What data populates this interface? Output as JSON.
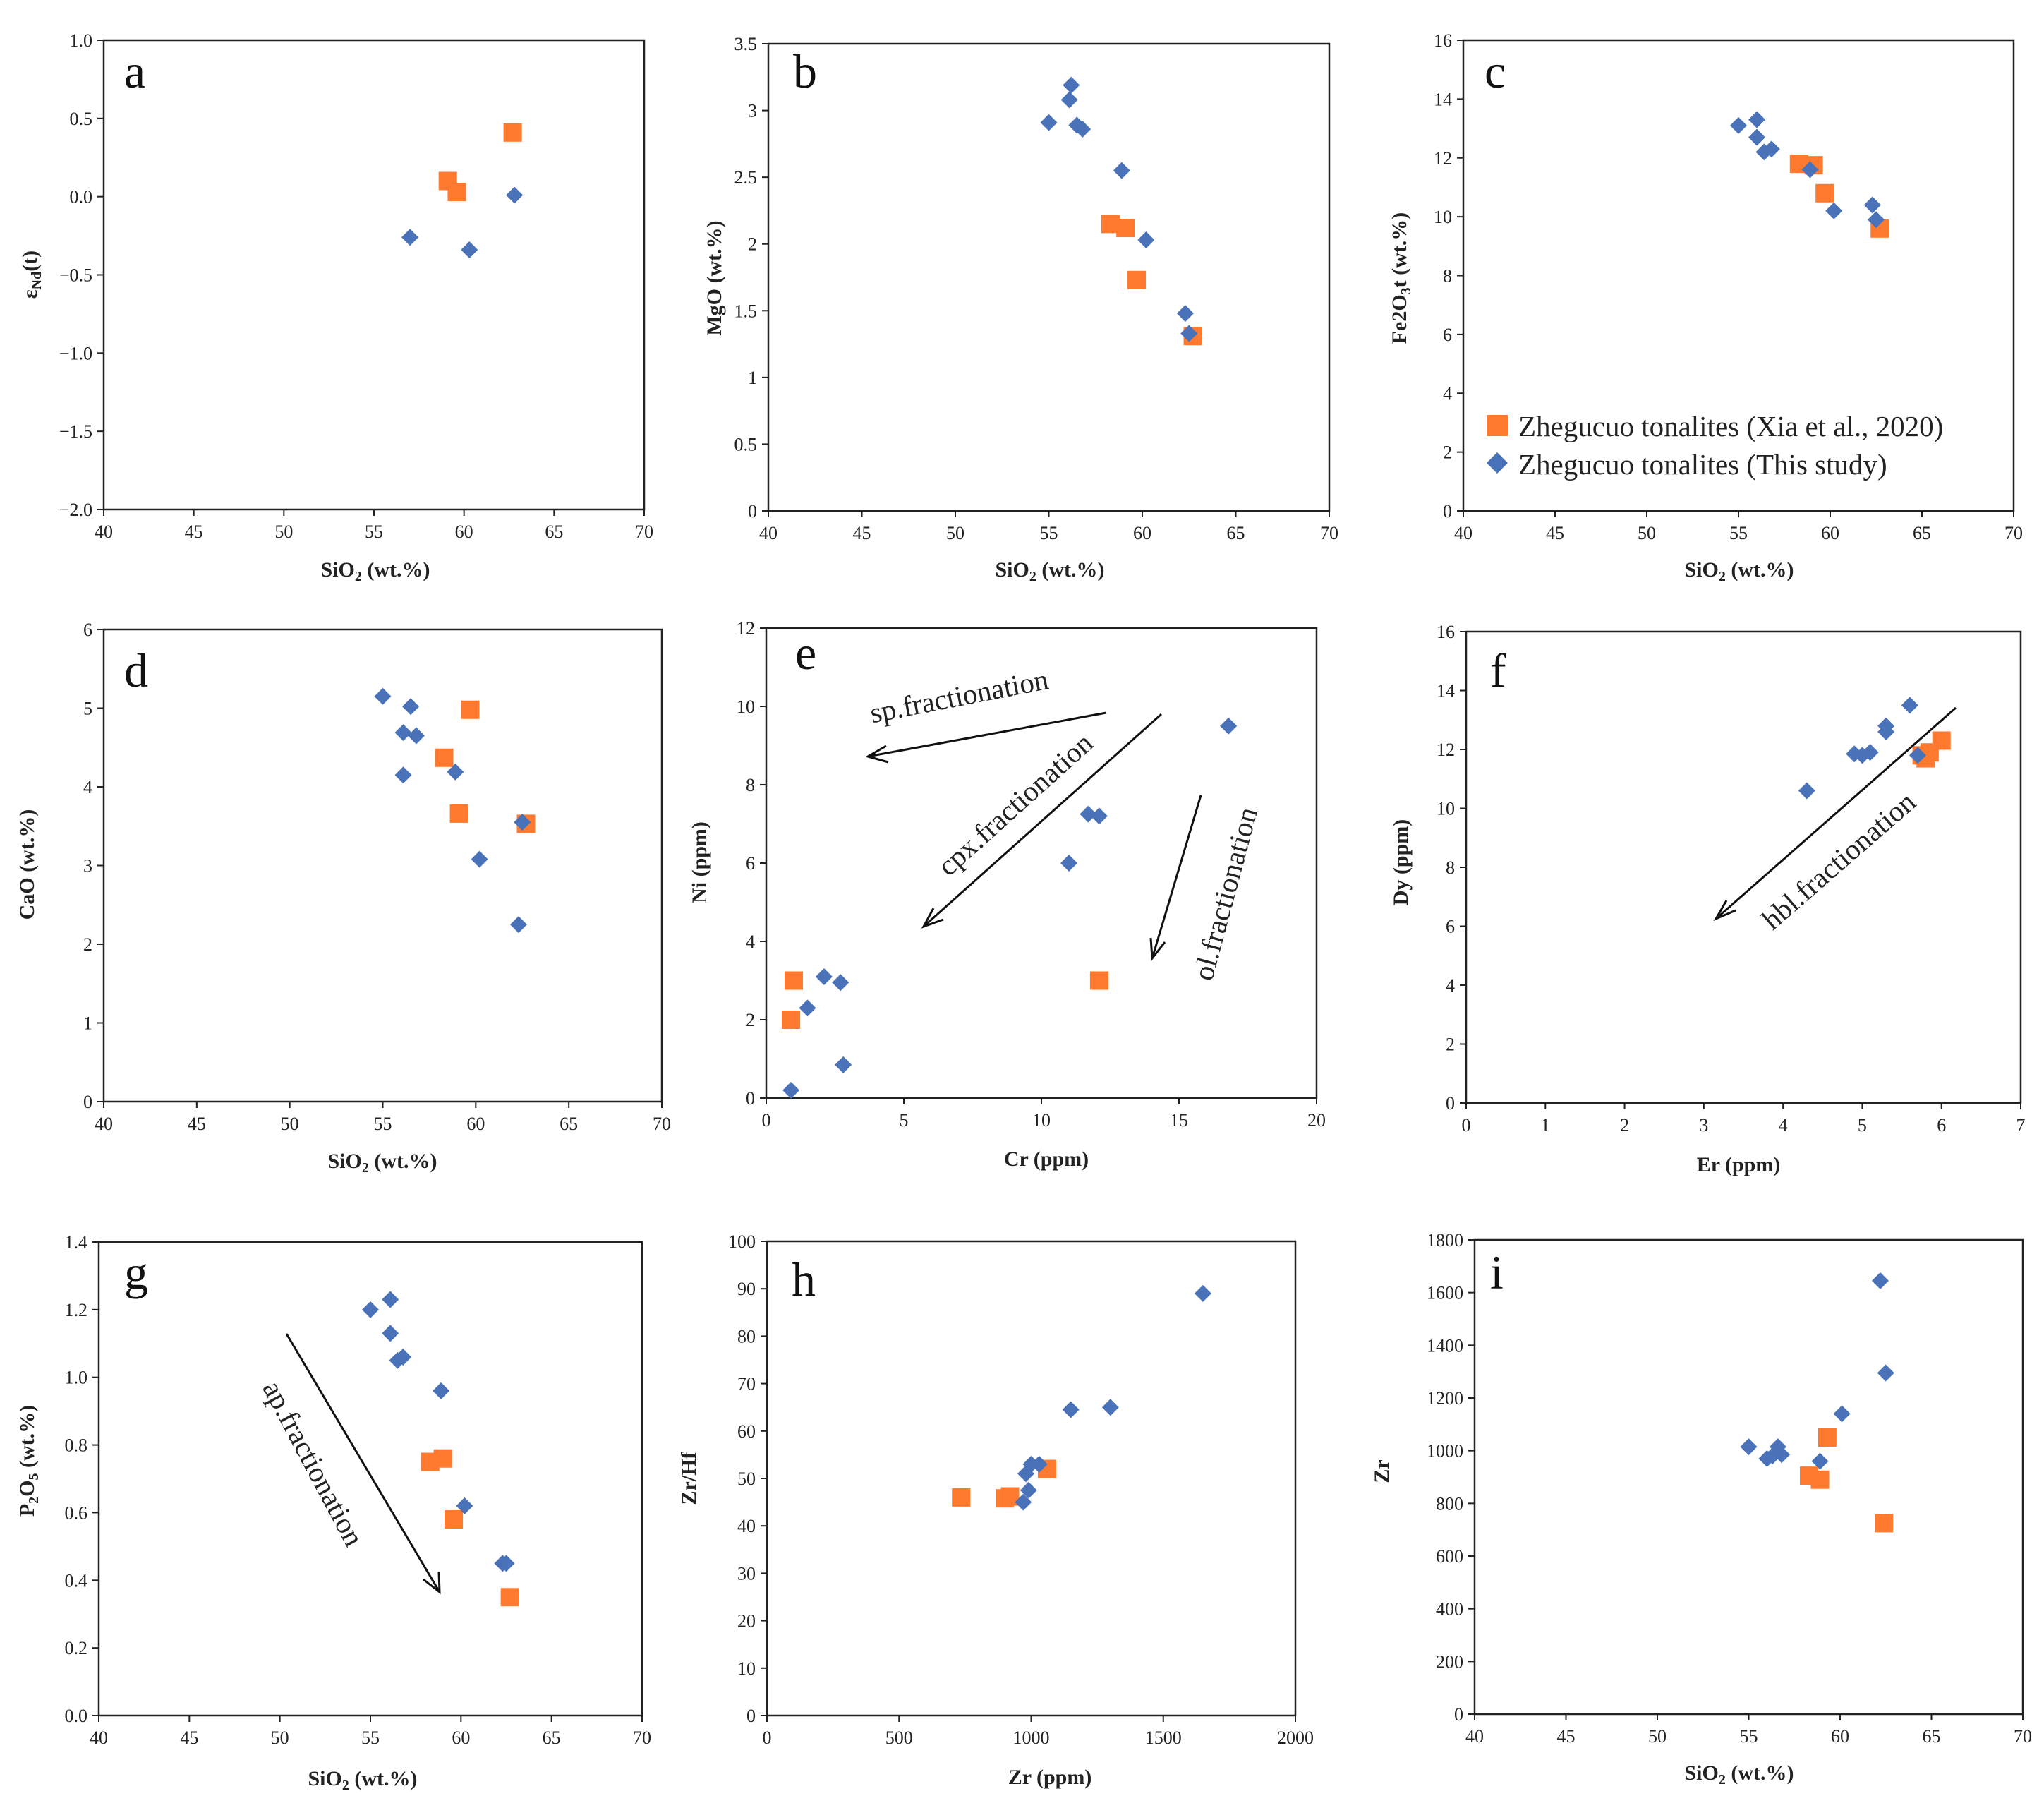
{
  "colors": {
    "xia": "#FF7A2E",
    "this_study": "#4A72B8"
  },
  "legend": {
    "xia": "Zhegucuo tonalites (Xia et al., 2020)",
    "this_study": "Zhegucuo tonalites (This study)"
  },
  "chart_data": [
    {
      "id": "a",
      "type": "scatter",
      "label": "a",
      "xlabel": "SiO2 (wt.%)",
      "ylabel": "εNd(t)",
      "xlim": [
        40,
        70
      ],
      "ylim": [
        -2.0,
        1.0
      ],
      "xticks": [
        40,
        45,
        50,
        55,
        60,
        65,
        70
      ],
      "xtick_labels": [
        "40",
        "45",
        "50",
        "55",
        "60",
        "65",
        "70"
      ],
      "yticks": [
        1.0,
        0.5,
        0.0,
        -0.5,
        -1.0,
        -1.5,
        -2.0
      ],
      "ytick_labels": [
        "1.0",
        "0.5",
        "0.0",
        "−0.5",
        "−1.0",
        "−1.5",
        "−2.0"
      ],
      "series": [
        {
          "name": "Zhegucuo tonalites (Xia et al., 2020)",
          "marker": "square",
          "points": [
            [
              59.1,
              0.1
            ],
            [
              59.6,
              0.03
            ],
            [
              62.7,
              0.41
            ]
          ]
        },
        {
          "name": "Zhegucuo tonalites (This study)",
          "marker": "diamond",
          "points": [
            [
              57.0,
              -0.26
            ],
            [
              60.3,
              -0.34
            ],
            [
              62.8,
              0.01
            ]
          ]
        }
      ]
    },
    {
      "id": "b",
      "type": "scatter",
      "label": "b",
      "xlabel": "SiO2 (wt.%)",
      "ylabel": "MgO (wt.%)",
      "xlim": [
        40,
        70
      ],
      "ylim": [
        0,
        3.5
      ],
      "xticks": [
        40,
        45,
        50,
        55,
        60,
        65,
        70
      ],
      "xtick_labels": [
        "40",
        "45",
        "50",
        "55",
        "60",
        "65",
        "70"
      ],
      "yticks": [
        0,
        0.5,
        1,
        1.5,
        2,
        2.5,
        3,
        3.5
      ],
      "ytick_labels": [
        "0",
        "0.5",
        "1",
        "1.5",
        "2",
        "2.5",
        "3",
        "3.5"
      ],
      "series": [
        {
          "name": "Zhegucuo tonalites (Xia et al., 2020)",
          "marker": "square",
          "points": [
            [
              58.3,
              2.15
            ],
            [
              59.1,
              2.12
            ],
            [
              59.7,
              1.73
            ],
            [
              62.7,
              1.31
            ]
          ]
        },
        {
          "name": "Zhegucuo tonalites (This study)",
          "marker": "diamond",
          "points": [
            [
              55.0,
              2.91
            ],
            [
              56.1,
              3.08
            ],
            [
              56.2,
              3.19
            ],
            [
              56.5,
              2.89
            ],
            [
              56.8,
              2.86
            ],
            [
              58.9,
              2.55
            ],
            [
              60.2,
              2.03
            ],
            [
              62.3,
              1.48
            ],
            [
              62.5,
              1.33
            ]
          ]
        }
      ]
    },
    {
      "id": "c",
      "type": "scatter",
      "label": "c",
      "xlabel": "SiO2 (wt.%)",
      "ylabel": "Fe2O3t (wt.%)",
      "xlim": [
        40,
        70
      ],
      "ylim": [
        0,
        16
      ],
      "xticks": [
        40,
        45,
        50,
        55,
        60,
        65,
        70
      ],
      "xtick_labels": [
        "40",
        "45",
        "50",
        "55",
        "60",
        "65",
        "70"
      ],
      "yticks": [
        0,
        2,
        4,
        6,
        8,
        10,
        12,
        14,
        16
      ],
      "ytick_labels": [
        "0",
        "2",
        "4",
        "6",
        "8",
        "10",
        "12",
        "14",
        "16"
      ],
      "series": [
        {
          "name": "Zhegucuo tonalites (Xia et al., 2020)",
          "marker": "square",
          "points": [
            [
              58.3,
              11.8
            ],
            [
              59.1,
              11.75
            ],
            [
              59.7,
              10.8
            ],
            [
              62.7,
              9.6
            ]
          ]
        },
        {
          "name": "Zhegucuo tonalites (This study)",
          "marker": "diamond",
          "points": [
            [
              55.0,
              13.1
            ],
            [
              56.0,
              13.3
            ],
            [
              56.0,
              12.7
            ],
            [
              56.4,
              12.2
            ],
            [
              56.8,
              12.3
            ],
            [
              58.9,
              11.6
            ],
            [
              60.2,
              10.2
            ],
            [
              62.3,
              10.4
            ],
            [
              62.5,
              9.9
            ]
          ]
        }
      ]
    },
    {
      "id": "d",
      "type": "scatter",
      "label": "d",
      "xlabel": "SiO2 (wt.%)",
      "ylabel": "CaO (wt.%)",
      "xlim": [
        40,
        70
      ],
      "ylim": [
        0,
        6
      ],
      "xticks": [
        40,
        45,
        50,
        55,
        60,
        65,
        70
      ],
      "xtick_labels": [
        "40",
        "45",
        "50",
        "55",
        "60",
        "65",
        "70"
      ],
      "yticks": [
        0,
        1,
        2,
        3,
        4,
        5,
        6
      ],
      "ytick_labels": [
        "0",
        "1",
        "2",
        "3",
        "4",
        "5",
        "6"
      ],
      "series": [
        {
          "name": "Zhegucuo tonalites (Xia et al., 2020)",
          "marker": "square",
          "points": [
            [
              58.3,
              4.37
            ],
            [
              59.1,
              3.66
            ],
            [
              59.7,
              4.98
            ],
            [
              62.7,
              3.53
            ]
          ]
        },
        {
          "name": "Zhegucuo tonalites (This study)",
          "marker": "diamond",
          "points": [
            [
              55.0,
              5.15
            ],
            [
              56.1,
              4.69
            ],
            [
              56.5,
              5.02
            ],
            [
              56.8,
              4.65
            ],
            [
              56.1,
              4.15
            ],
            [
              58.9,
              4.19
            ],
            [
              60.2,
              3.08
            ],
            [
              62.3,
              2.25
            ],
            [
              62.5,
              3.55
            ]
          ]
        }
      ]
    },
    {
      "id": "e",
      "type": "scatter",
      "label": "e",
      "xlabel": "Cr (ppm)",
      "ylabel": "Ni (ppm)",
      "xlim": [
        0,
        20
      ],
      "ylim": [
        0,
        12
      ],
      "xticks": [
        0,
        5,
        10,
        15,
        20
      ],
      "xtick_labels": [
        "0",
        "5",
        "10",
        "15",
        "20"
      ],
      "yticks": [
        0,
        2,
        4,
        6,
        8,
        10,
        12
      ],
      "ytick_labels": [
        "0",
        "2",
        "4",
        "6",
        "8",
        "10",
        "12"
      ],
      "annotations": [
        "sp.fractionation",
        "cpx.fractionation",
        "ol.fractionation"
      ],
      "series": [
        {
          "name": "Zhegucuo tonalites (Xia et al., 2020)",
          "marker": "square",
          "points": [
            [
              1.0,
              3.0
            ],
            [
              0.9,
              2.0
            ],
            [
              12.1,
              3.0
            ]
          ]
        },
        {
          "name": "Zhegucuo tonalites (This study)",
          "marker": "diamond",
          "points": [
            [
              0.9,
              0.2
            ],
            [
              1.5,
              2.3
            ],
            [
              2.1,
              3.1
            ],
            [
              2.7,
              2.95
            ],
            [
              2.8,
              0.85
            ],
            [
              11.0,
              6.0
            ],
            [
              11.7,
              7.25
            ],
            [
              12.1,
              7.2
            ],
            [
              16.8,
              9.5
            ]
          ]
        }
      ]
    },
    {
      "id": "f",
      "type": "scatter",
      "label": "f",
      "xlabel": "Er (ppm)",
      "ylabel": "Dy (ppm)",
      "xlim": [
        0,
        7
      ],
      "ylim": [
        0,
        16
      ],
      "xticks": [
        0,
        1,
        2,
        3,
        4,
        5,
        6,
        7
      ],
      "xtick_labels": [
        "0",
        "1",
        "2",
        "3",
        "4",
        "5",
        "6",
        "7"
      ],
      "yticks": [
        0,
        2,
        4,
        6,
        8,
        10,
        12,
        14,
        16
      ],
      "ytick_labels": [
        "0",
        "2",
        "4",
        "6",
        "8",
        "10",
        "12",
        "14",
        "16"
      ],
      "annotations": [
        "hbl.fractionation"
      ],
      "series": [
        {
          "name": "Zhegucuo tonalites (Xia et al., 2020)",
          "marker": "square",
          "points": [
            [
              5.75,
              11.8
            ],
            [
              5.8,
              11.7
            ],
            [
              5.85,
              11.9
            ],
            [
              6.0,
              12.3
            ]
          ]
        },
        {
          "name": "Zhegucuo tonalites (This study)",
          "marker": "diamond",
          "points": [
            [
              4.3,
              10.6
            ],
            [
              4.9,
              11.85
            ],
            [
              5.0,
              11.8
            ],
            [
              5.1,
              11.9
            ],
            [
              5.3,
              12.6
            ],
            [
              5.3,
              12.8
            ],
            [
              5.6,
              13.5
            ],
            [
              5.7,
              11.8
            ]
          ]
        }
      ]
    },
    {
      "id": "g",
      "type": "scatter",
      "label": "g",
      "xlabel": "SiO2 (wt.%)",
      "ylabel": "P2O5 (wt.%)",
      "xlim": [
        40,
        70
      ],
      "ylim": [
        0,
        1.4
      ],
      "xticks": [
        40,
        45,
        50,
        55,
        60,
        65,
        70
      ],
      "xtick_labels": [
        "40",
        "45",
        "50",
        "55",
        "60",
        "65",
        "70"
      ],
      "yticks": [
        0.0,
        0.2,
        0.4,
        0.6,
        0.8,
        1.0,
        1.2,
        1.4
      ],
      "ytick_labels": [
        "0.0",
        "0.2",
        "0.4",
        "0.6",
        "0.8",
        "1.0",
        "1.2",
        "1.4"
      ],
      "annotations": [
        "ap.fractionation"
      ],
      "series": [
        {
          "name": "Zhegucuo tonalites (Xia et al., 2020)",
          "marker": "square",
          "points": [
            [
              58.3,
              0.75
            ],
            [
              59.0,
              0.76
            ],
            [
              59.6,
              0.58
            ],
            [
              62.7,
              0.35
            ]
          ]
        },
        {
          "name": "Zhegucuo tonalites (This study)",
          "marker": "diamond",
          "points": [
            [
              55.0,
              1.2
            ],
            [
              56.1,
              1.23
            ],
            [
              56.1,
              1.13
            ],
            [
              56.5,
              1.05
            ],
            [
              56.8,
              1.06
            ],
            [
              58.9,
              0.96
            ],
            [
              60.2,
              0.62
            ],
            [
              62.3,
              0.45
            ],
            [
              62.5,
              0.45
            ]
          ]
        }
      ]
    },
    {
      "id": "h",
      "type": "scatter",
      "label": "h",
      "xlabel": "Zr (ppm)",
      "ylabel": "Zr/Hf",
      "xlim": [
        0,
        2000
      ],
      "ylim": [
        0,
        100
      ],
      "xticks": [
        0,
        500,
        1000,
        1500,
        2000
      ],
      "xtick_labels": [
        "0",
        "500",
        "1000",
        "1500",
        "2000"
      ],
      "yticks": [
        0,
        10,
        20,
        30,
        40,
        50,
        60,
        70,
        80,
        90,
        100
      ],
      "ytick_labels": [
        "0",
        "10",
        "20",
        "30",
        "40",
        "50",
        "60",
        "70",
        "80",
        "90",
        "100"
      ],
      "series": [
        {
          "name": "Zhegucuo tonalites (Xia et al., 2020)",
          "marker": "square",
          "points": [
            [
              735,
              46
            ],
            [
              900,
              45.8
            ],
            [
              920,
              46.2
            ],
            [
              1060,
              52
            ]
          ]
        },
        {
          "name": "Zhegucuo tonalites (This study)",
          "marker": "diamond",
          "points": [
            [
              970,
              45
            ],
            [
              980,
              51
            ],
            [
              990,
              47.5
            ],
            [
              1000,
              53
            ],
            [
              1030,
              53
            ],
            [
              1150,
              64.5
            ],
            [
              1300,
              65
            ],
            [
              1650,
              89
            ]
          ]
        }
      ]
    },
    {
      "id": "i",
      "type": "scatter",
      "label": "i",
      "xlabel": "SiO2 (wt.%)",
      "ylabel": "Zr",
      "xlim": [
        40,
        70
      ],
      "ylim": [
        0,
        1800
      ],
      "xticks": [
        40,
        45,
        50,
        55,
        60,
        65,
        70
      ],
      "xtick_labels": [
        "40",
        "45",
        "50",
        "55",
        "60",
        "65",
        "70"
      ],
      "yticks": [
        0,
        200,
        400,
        600,
        800,
        1000,
        1200,
        1400,
        1600,
        1800
      ],
      "ytick_labels": [
        "0",
        "200",
        "400",
        "600",
        "800",
        "1000",
        "1200",
        "1400",
        "1600",
        "1800"
      ],
      "series": [
        {
          "name": "Zhegucuo tonalites (Xia et al., 2020)",
          "marker": "square",
          "points": [
            [
              58.3,
              905
            ],
            [
              58.9,
              890
            ],
            [
              59.3,
              1050
            ],
            [
              62.4,
              725
            ]
          ]
        },
        {
          "name": "Zhegucuo tonalites (This study)",
          "marker": "diamond",
          "points": [
            [
              55.0,
              1015
            ],
            [
              56.0,
              970
            ],
            [
              56.3,
              980
            ],
            [
              56.6,
              1015
            ],
            [
              56.8,
              985
            ],
            [
              58.9,
              960
            ],
            [
              60.1,
              1140
            ],
            [
              62.2,
              1645
            ],
            [
              62.5,
              1295
            ]
          ]
        }
      ]
    }
  ]
}
